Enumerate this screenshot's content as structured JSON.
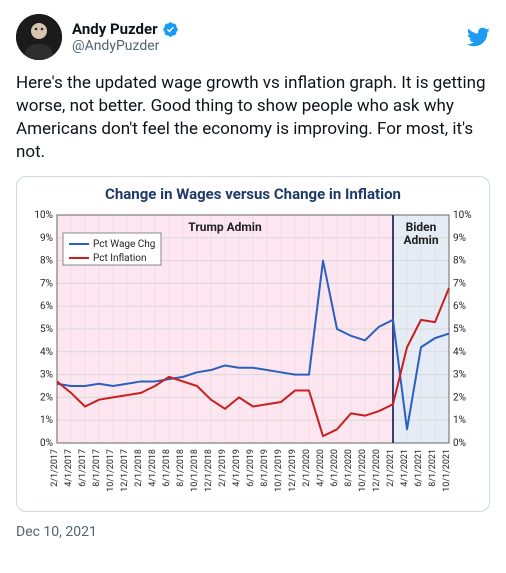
{
  "author": {
    "display_name": "Andy Puzder",
    "handle": "@AndyPuzder"
  },
  "verified_color": "#1d9bf0",
  "twitter_logo_color": "#1d9bf0",
  "tweet_text": "Here's the updated wage growth vs inflation graph. It is getting worse, not better. Good thing to show people who ask why Americans don't feel the economy is improving. For most, it's not.",
  "timestamp": "Dec 10, 2021",
  "chart": {
    "type": "line",
    "title": "Change in Wages versus Change in Inflation",
    "title_color": "#1f3a68",
    "title_fontsize": 15,
    "background_color": "#ffffff",
    "plot_background_trump": "#fde6ef",
    "plot_background_biden": "#e5ecf5",
    "grid_color": "#d9d9d9",
    "axis_color": "#666666",
    "divider_color": "#3a3f7a",
    "admin_labels": {
      "trump": "Trump Admin",
      "biden": "Biden Admin"
    },
    "legend": {
      "border_color": "#888888",
      "text_fontsize": 10,
      "items": [
        {
          "label": "Pct Wage Chg",
          "color": "#2b5fc1"
        },
        {
          "label": "Pct Inflation",
          "color": "#c9201f"
        }
      ]
    },
    "ylim": [
      0,
      10
    ],
    "ytick_step": 1,
    "ytick_suffix": "%",
    "x_categories": [
      "2/1/2017",
      "4/1/2017",
      "6/1/2017",
      "8/1/2017",
      "10/1/2017",
      "12/1/2017",
      "2/1/2018",
      "4/1/2018",
      "6/1/2018",
      "8/1/2018",
      "10/1/2018",
      "12/1/2018",
      "2/1/2019",
      "4/1/2019",
      "6/1/2019",
      "8/1/2019",
      "10/1/2019",
      "12/1/2019",
      "2/1/2020",
      "4/1/2020",
      "6/1/2020",
      "8/1/2020",
      "10/1/2020",
      "12/1/2020",
      "2/1/2021",
      "4/1/2021",
      "6/1/2021",
      "8/1/2021",
      "10/1/2021"
    ],
    "series": {
      "wage": {
        "color": "#2b5fc1",
        "line_width": 2,
        "values": [
          2.6,
          2.5,
          2.5,
          2.6,
          2.5,
          2.6,
          2.7,
          2.7,
          2.8,
          2.9,
          3.1,
          3.2,
          3.4,
          3.3,
          3.3,
          3.2,
          3.1,
          3.0,
          3.0,
          8.0,
          5.0,
          4.7,
          4.5,
          5.1,
          5.4,
          0.6,
          4.2,
          4.6,
          4.8
        ]
      },
      "inflation": {
        "color": "#c9201f",
        "line_width": 2,
        "values": [
          2.7,
          2.2,
          1.6,
          1.9,
          2.0,
          2.1,
          2.2,
          2.5,
          2.9,
          2.7,
          2.5,
          1.9,
          1.5,
          2.0,
          1.6,
          1.7,
          1.8,
          2.3,
          2.3,
          0.3,
          0.6,
          1.3,
          1.2,
          1.4,
          1.7,
          4.2,
          5.4,
          5.3,
          6.8
        ]
      }
    },
    "divider_index": 24,
    "label_fontsize": 10
  }
}
